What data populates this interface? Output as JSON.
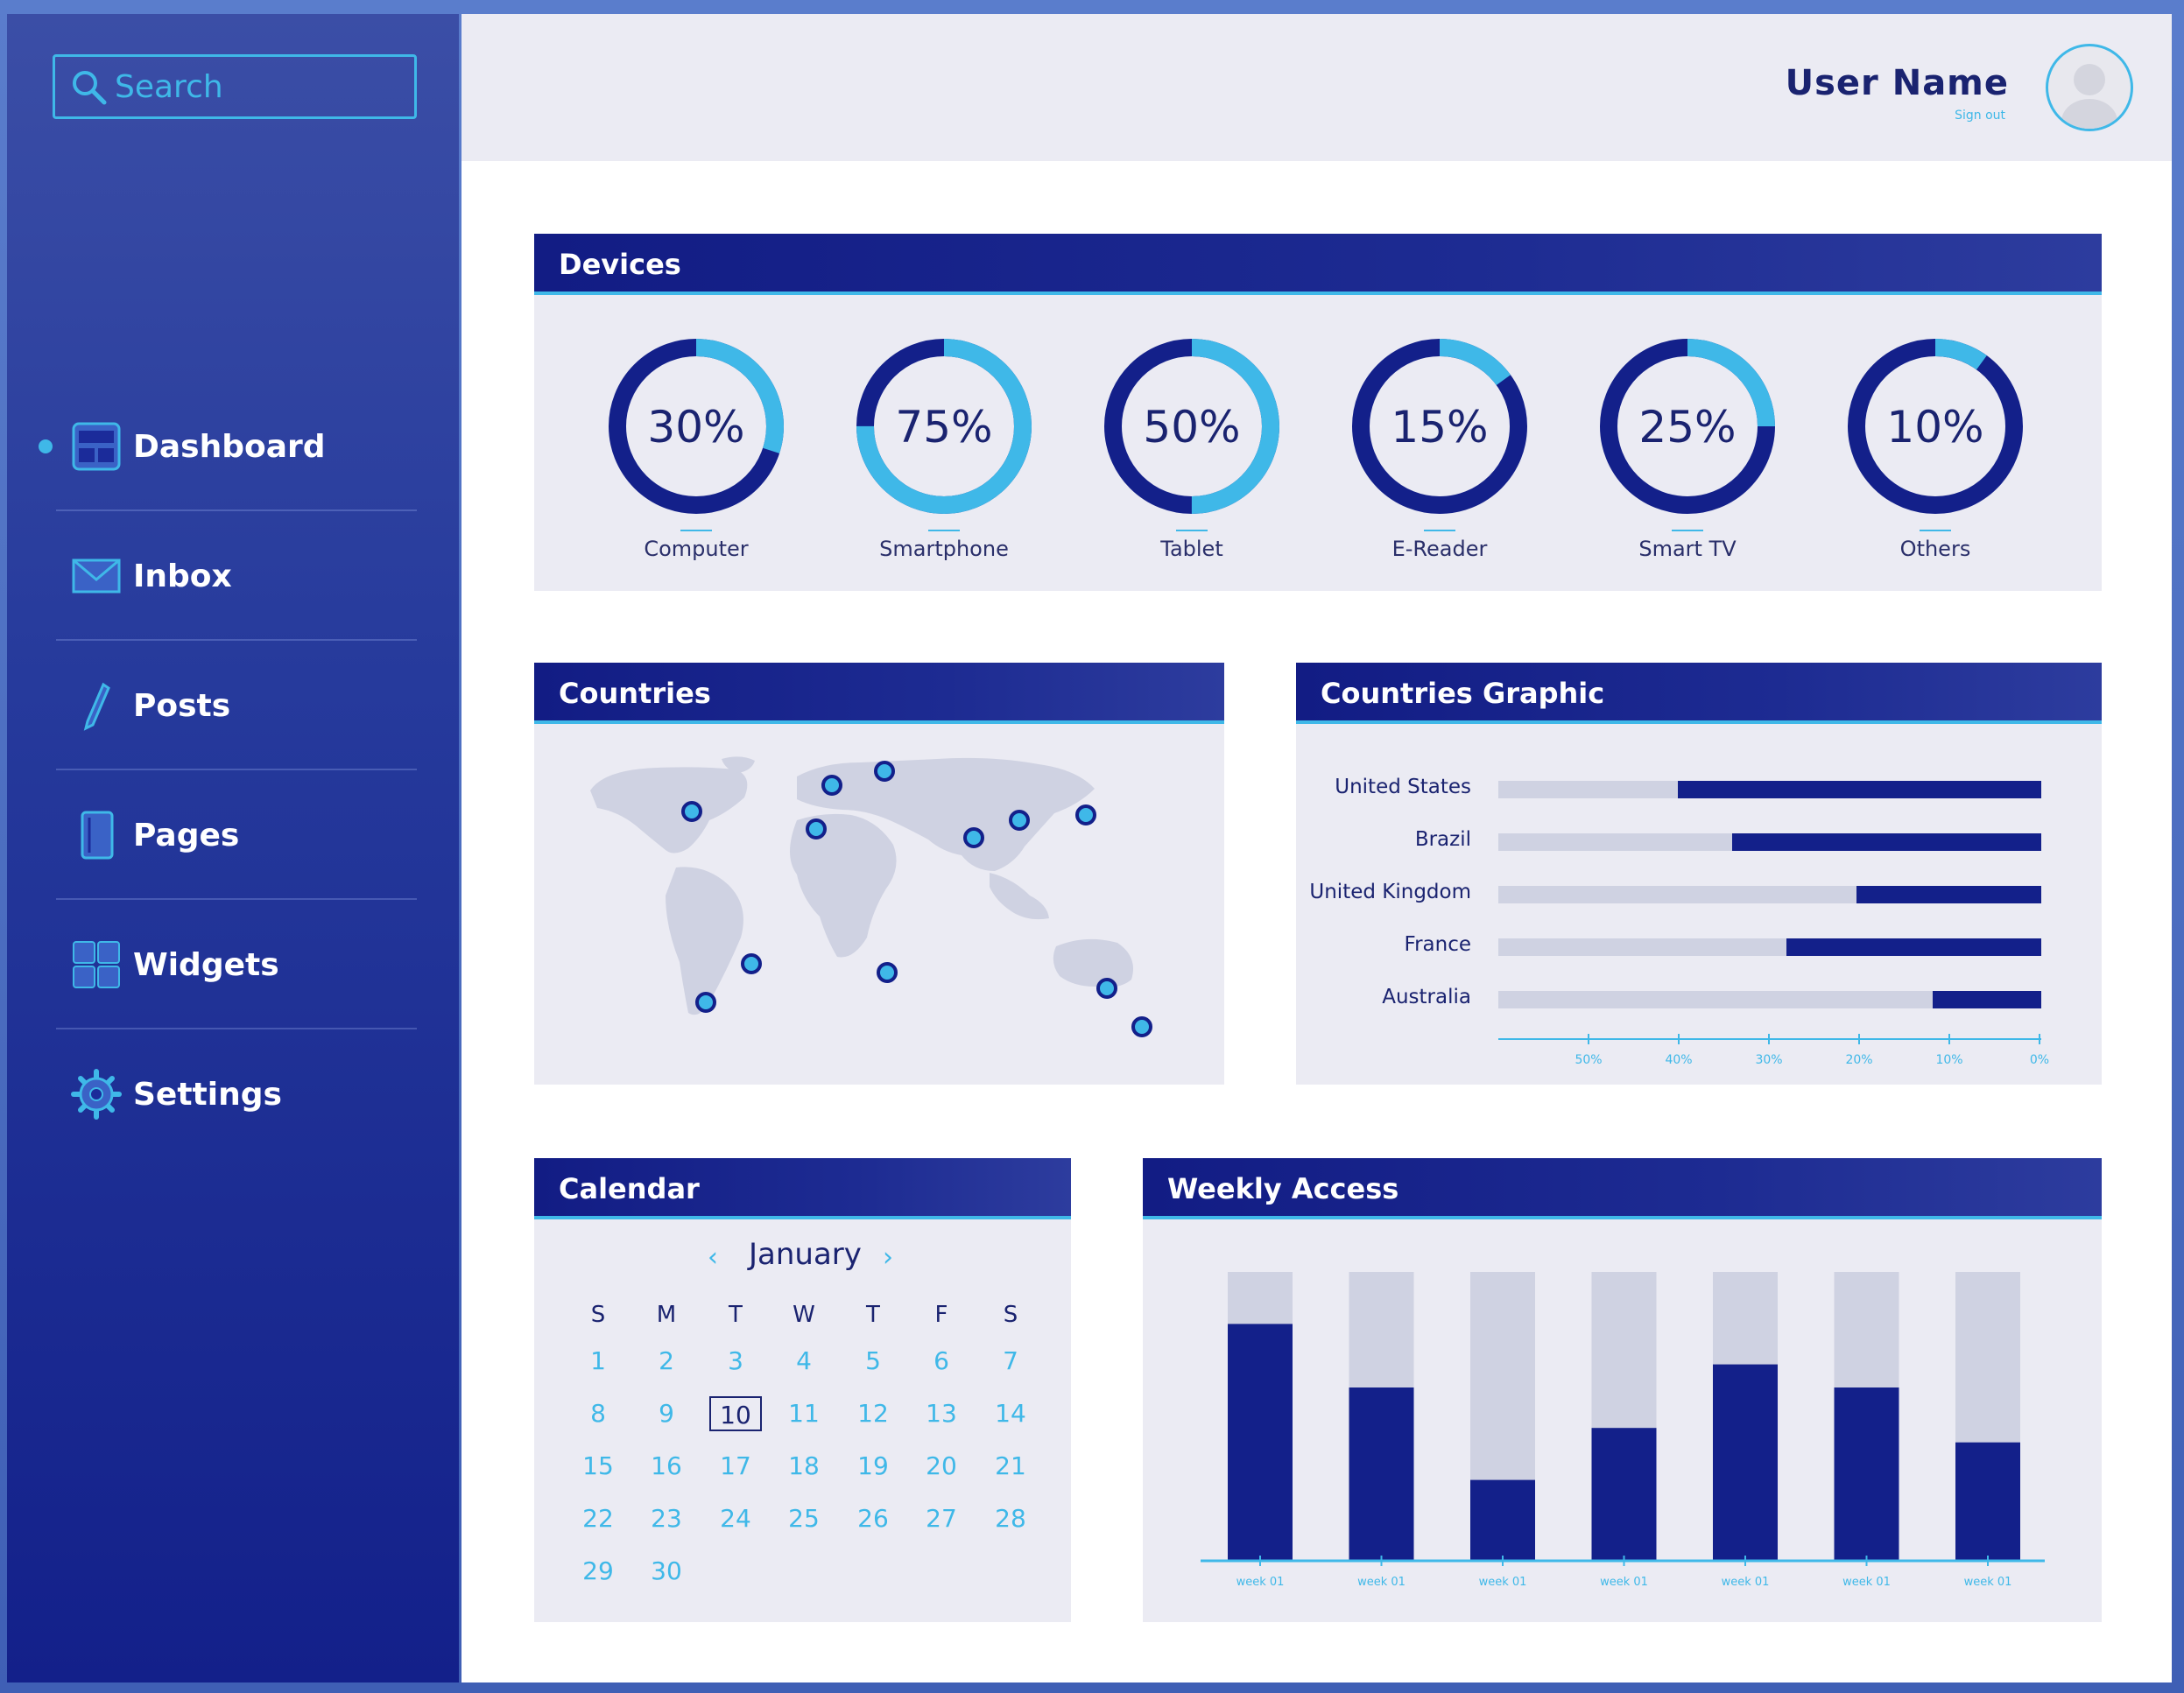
{
  "search": {
    "placeholder": "Search"
  },
  "sidebar": {
    "items": [
      {
        "label": "Dashboard",
        "icon": "dashboard-icon",
        "active": true
      },
      {
        "label": "Inbox",
        "icon": "mail-icon"
      },
      {
        "label": "Posts",
        "icon": "pen-icon"
      },
      {
        "label": "Pages",
        "icon": "page-icon"
      },
      {
        "label": "Widgets",
        "icon": "widgets-icon"
      },
      {
        "label": "Settings",
        "icon": "gear-icon"
      }
    ]
  },
  "header": {
    "user_name": "User Name",
    "sign_out": "Sign out"
  },
  "devices": {
    "title": "Devices",
    "items": [
      {
        "label": "Computer",
        "value": "30%",
        "fraction": 0.3
      },
      {
        "label": "Smartphone",
        "value": "75%",
        "fraction": 0.75
      },
      {
        "label": "Tablet",
        "value": "50%",
        "fraction": 0.5
      },
      {
        "label": "E-Reader",
        "value": "15%",
        "fraction": 0.15
      },
      {
        "label": "Smart TV",
        "value": "25%",
        "fraction": 0.25
      },
      {
        "label": "Others",
        "value": "10%",
        "fraction": 0.1
      }
    ]
  },
  "countries": {
    "title": "Countries"
  },
  "countries_graphic": {
    "title": "Countries Graphic",
    "rows": [
      {
        "label": "United States",
        "value": 0.67
      },
      {
        "label": "Brazil",
        "value": 0.57
      },
      {
        "label": "United Kingdom",
        "value": 0.34
      },
      {
        "label": "France",
        "value": 0.47
      },
      {
        "label": "Australia",
        "value": 0.2
      }
    ],
    "ticks": [
      "50%",
      "40%",
      "30%",
      "20%",
      "10%",
      "0%"
    ]
  },
  "calendar": {
    "title": "Calendar",
    "month": "January",
    "prev": "‹",
    "next": "›",
    "dow": [
      "S",
      "M",
      "T",
      "W",
      "T",
      "F",
      "S"
    ],
    "days": [
      "1",
      "2",
      "3",
      "4",
      "5",
      "6",
      "7",
      "8",
      "9",
      "10",
      "11",
      "12",
      "13",
      "14",
      "15",
      "16",
      "17",
      "18",
      "19",
      "20",
      "21",
      "22",
      "23",
      "24",
      "25",
      "26",
      "27",
      "28",
      "29",
      "30"
    ],
    "today": "10"
  },
  "weekly": {
    "title": "Weekly Access",
    "week_label": "week 01",
    "values": [
      0.82,
      0.6,
      0.28,
      0.46,
      0.68,
      0.6,
      0.41
    ]
  },
  "colors": {
    "accent": "#3fb8e8",
    "navy": "#13208a",
    "panel": "#ebebf3",
    "track": "#cfd2e2"
  }
}
